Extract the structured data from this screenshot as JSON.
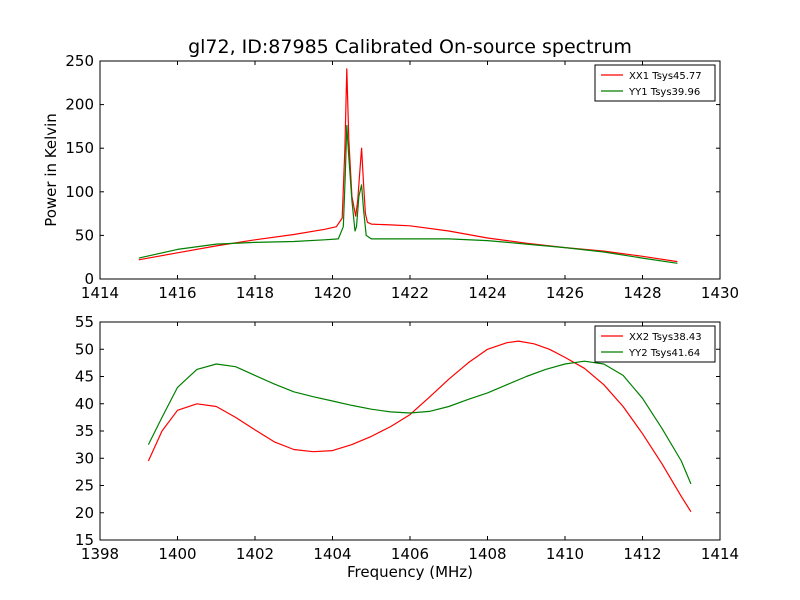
{
  "figure": {
    "title": "gl72, ID:87985 Calibrated On-source spectrum",
    "xlabel": "Frequency (MHz)"
  },
  "chart_data": [
    {
      "type": "line",
      "title": "gl72, ID:87985 Calibrated On-source spectrum",
      "xlabel": "",
      "ylabel": "Power in Kelvin",
      "xlim": [
        1414,
        1430
      ],
      "ylim": [
        0,
        250
      ],
      "xticks": [
        1414,
        1416,
        1418,
        1420,
        1422,
        1424,
        1426,
        1428,
        1430
      ],
      "yticks": [
        0,
        50,
        100,
        150,
        200,
        250
      ],
      "grid": false,
      "legend": "top-right",
      "series": [
        {
          "name": "XX1 Tsys45.77",
          "color": "#ff0000",
          "x": [
            1415.0,
            1416.0,
            1417.0,
            1418.0,
            1419.0,
            1419.8,
            1420.1,
            1420.25,
            1420.32,
            1420.37,
            1420.42,
            1420.5,
            1420.6,
            1420.65,
            1420.7,
            1420.75,
            1420.8,
            1420.85,
            1420.9,
            1421.0,
            1421.5,
            1422.0,
            1423.0,
            1424.0,
            1425.0,
            1426.0,
            1427.0,
            1428.0,
            1428.9
          ],
          "y": [
            22,
            30,
            38,
            45,
            51,
            57,
            60,
            70,
            150,
            241,
            160,
            95,
            72,
            90,
            120,
            150,
            110,
            75,
            65,
            63,
            62,
            61,
            55,
            47,
            41,
            36,
            32,
            26,
            20
          ]
        },
        {
          "name": "YY1 Tsys39.96",
          "color": "#008000",
          "x": [
            1415.0,
            1416.0,
            1417.0,
            1418.0,
            1419.0,
            1419.8,
            1420.15,
            1420.28,
            1420.33,
            1420.37,
            1420.42,
            1420.5,
            1420.58,
            1420.62,
            1420.68,
            1420.75,
            1420.8,
            1420.87,
            1421.0,
            1421.5,
            1422.0,
            1423.0,
            1424.0,
            1425.0,
            1426.0,
            1427.0,
            1428.0,
            1428.9
          ],
          "y": [
            24,
            34,
            40,
            42,
            43,
            45,
            46,
            60,
            120,
            176,
            140,
            90,
            55,
            60,
            95,
            108,
            80,
            50,
            46,
            46,
            46,
            46,
            44,
            40,
            36,
            31,
            24,
            18
          ]
        }
      ]
    },
    {
      "type": "line",
      "title": "",
      "xlabel": "Frequency (MHz)",
      "ylabel": "",
      "xlim": [
        1398,
        1414
      ],
      "ylim": [
        15,
        55
      ],
      "xticks": [
        1398,
        1400,
        1402,
        1404,
        1406,
        1408,
        1410,
        1412,
        1414
      ],
      "yticks": [
        15,
        20,
        25,
        30,
        35,
        40,
        45,
        50,
        55
      ],
      "grid": false,
      "legend": "top-right",
      "series": [
        {
          "name": "XX2 Tsys38.43",
          "color": "#ff0000",
          "x": [
            1399.25,
            1399.6,
            1400.0,
            1400.5,
            1401.0,
            1401.5,
            1402.0,
            1402.5,
            1403.0,
            1403.5,
            1404.0,
            1404.5,
            1405.0,
            1405.5,
            1406.0,
            1406.5,
            1407.0,
            1407.5,
            1408.0,
            1408.5,
            1408.8,
            1409.2,
            1409.6,
            1410.0,
            1410.5,
            1411.0,
            1411.5,
            1412.0,
            1412.5,
            1413.0,
            1413.25
          ],
          "y": [
            29.5,
            35,
            38.8,
            40,
            39.5,
            37.5,
            35.2,
            33,
            31.6,
            31.2,
            31.4,
            32.5,
            34,
            35.8,
            38,
            41.2,
            44.5,
            47.5,
            50,
            51.2,
            51.5,
            51,
            50,
            48.5,
            46.5,
            43.5,
            39.5,
            34.5,
            29,
            23,
            20.2
          ]
        },
        {
          "name": "YY2 Tsys41.64",
          "color": "#008000",
          "x": [
            1399.25,
            1399.6,
            1400.0,
            1400.5,
            1401.0,
            1401.5,
            1402.0,
            1402.5,
            1403.0,
            1403.5,
            1404.0,
            1404.5,
            1405.0,
            1405.5,
            1406.0,
            1406.5,
            1407.0,
            1407.5,
            1408.0,
            1408.5,
            1409.0,
            1409.5,
            1410.0,
            1410.5,
            1411.0,
            1411.5,
            1412.0,
            1412.5,
            1413.0,
            1413.25
          ],
          "y": [
            32.5,
            37.5,
            43,
            46.3,
            47.3,
            46.8,
            45.2,
            43.6,
            42.2,
            41.3,
            40.5,
            39.7,
            39,
            38.5,
            38.3,
            38.6,
            39.5,
            40.8,
            42,
            43.5,
            45,
            46.3,
            47.3,
            47.8,
            47.3,
            45.2,
            41,
            35.5,
            29.5,
            25.3
          ]
        }
      ]
    }
  ]
}
